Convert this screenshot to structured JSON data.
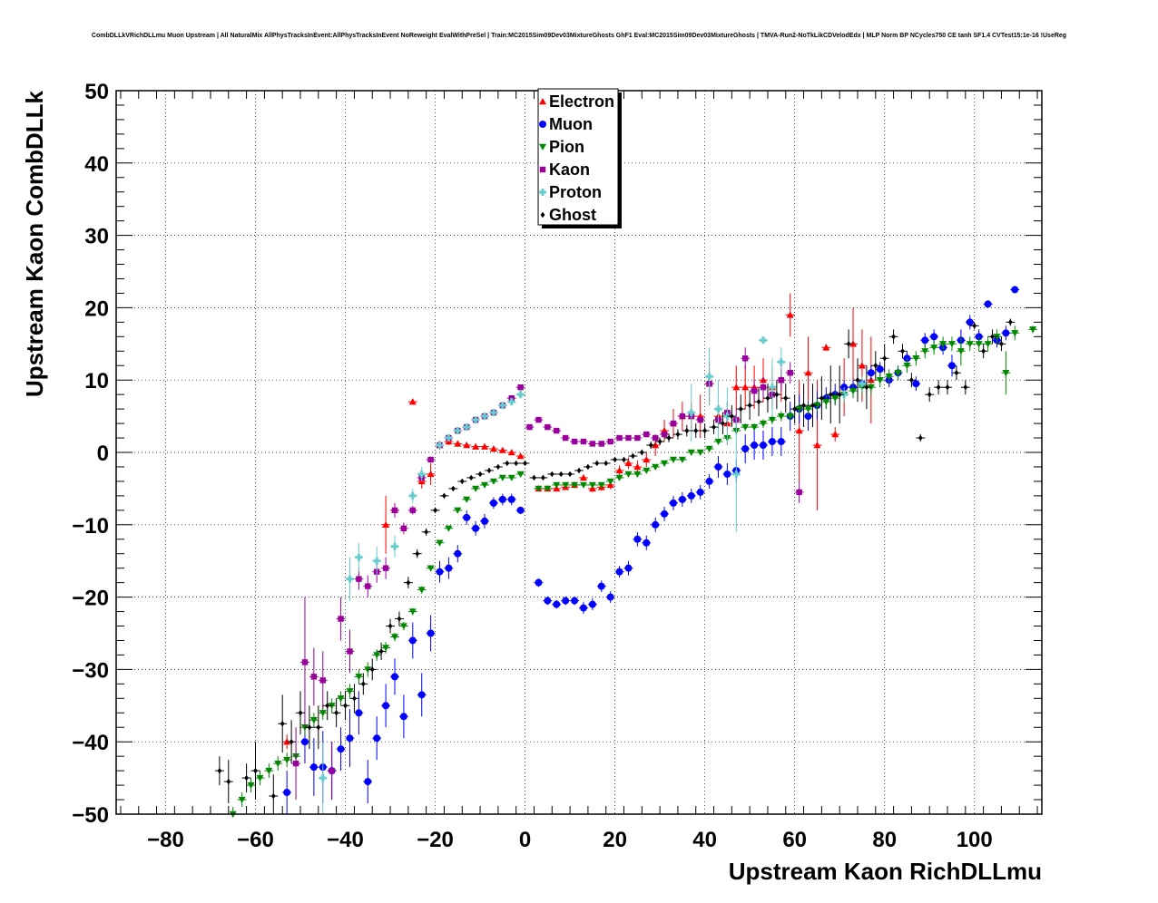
{
  "chart_data": {
    "type": "scatter",
    "title": "CombDLLkVRichDLLmu Muon Upstream | All NaturalMix AllPhysTracksInEvent:AllPhysTracksInEvent NoReweight EvalWithPreSel | Train:MC2015Sim09Dev03MixtureGhosts GhF1 Eval:MC2015Sim09Dev03MixtureGhosts | TMVA-Run2-NoTkLikCDVelodEdx | MLP Norm BP NCycles750 CE tanh SF1.4 CVTest15:1e-16 !UseReg",
    "xlabel": "Upstream Kaon RichDLLmu",
    "ylabel": "Upstream Kaon CombDLLk",
    "xlim": [
      -91,
      115
    ],
    "ylim": [
      -50,
      50
    ],
    "xticks": [
      -80,
      -60,
      -40,
      -20,
      0,
      20,
      40,
      60,
      80,
      100
    ],
    "yticks": [
      -50,
      -40,
      -30,
      -20,
      -10,
      0,
      10,
      20,
      30,
      40,
      50
    ],
    "xtick_labels": [
      "−80",
      "−60",
      "−40",
      "−20",
      "0",
      "20",
      "40",
      "60",
      "80",
      "100"
    ],
    "ytick_labels": [
      "−50",
      "−40",
      "−30",
      "−20",
      "−10",
      "0",
      "10",
      "20",
      "30",
      "40",
      "50"
    ],
    "grid": true,
    "legend_position": "top-center",
    "series": [
      {
        "name": "Electron",
        "color": "#ff0000",
        "marker": "triangle-up",
        "x": [
          -53,
          -31,
          -29,
          -25,
          -23,
          -21,
          -19,
          -17,
          -15,
          -13,
          -11,
          -9,
          -7,
          -5,
          -3,
          -1,
          3,
          5,
          7,
          9,
          11,
          13,
          15,
          17,
          19,
          21,
          23,
          25,
          27,
          29,
          31,
          33,
          35,
          37,
          39,
          41,
          43,
          45,
          47,
          49,
          51,
          53,
          55,
          57,
          59,
          61,
          63,
          65,
          67,
          69,
          71,
          73,
          75,
          77
        ],
        "y": [
          -40,
          -10,
          -8,
          7,
          -4,
          -3,
          1,
          1.5,
          1.2,
          1,
          0.8,
          0.8,
          0.5,
          0.3,
          0,
          -0.5,
          -5,
          -5,
          -5,
          -4.8,
          -4.5,
          -3.5,
          -5,
          -4.8,
          -4.5,
          -2.5,
          -1.5,
          -2,
          -1,
          1,
          3,
          4,
          5,
          5,
          5,
          9.5,
          5,
          4,
          9,
          9,
          9,
          10,
          9,
          10,
          19,
          3,
          11,
          1,
          14.5,
          2.5,
          9,
          15,
          12,
          10
        ],
        "yerr": [
          1,
          4,
          1,
          0.4,
          1,
          1.5,
          0.6,
          0.5,
          0.4,
          0.4,
          0.3,
          0.3,
          0.3,
          0.3,
          0.3,
          0.3,
          0.4,
          0.4,
          0.4,
          0.4,
          0.4,
          0.4,
          0.5,
          0.5,
          0.6,
          0.7,
          0.8,
          0.9,
          1,
          1.5,
          1.5,
          2,
          2,
          2,
          3,
          3,
          2.5,
          3,
          3,
          3,
          3,
          3,
          3,
          3,
          3,
          7,
          5,
          9,
          0.5,
          1,
          4,
          5,
          5,
          6
        ]
      },
      {
        "name": "Muon",
        "color": "#0000ff",
        "marker": "circle",
        "x": [
          -53,
          -49,
          -47,
          -45,
          -43,
          -41,
          -39,
          -37,
          -35,
          -33,
          -31,
          -29,
          -27,
          -25,
          -23,
          -21,
          -19,
          -17,
          -15,
          -13,
          -11,
          -9,
          -7,
          -5,
          -3,
          -1,
          3,
          5,
          7,
          9,
          11,
          13,
          15,
          17,
          19,
          21,
          23,
          25,
          27,
          29,
          31,
          33,
          35,
          37,
          39,
          41,
          43,
          45,
          47,
          49,
          51,
          53,
          55,
          57,
          59,
          61,
          63,
          65,
          67,
          69,
          71,
          73,
          75,
          77,
          79,
          81,
          83,
          85,
          87,
          89,
          91,
          93,
          95,
          97,
          99,
          101,
          103,
          105,
          107,
          109
        ],
        "y": [
          -47,
          -40,
          -43.5,
          -43.5,
          -44,
          -41,
          -39.5,
          -36,
          -45.5,
          -39.5,
          -35,
          -31,
          -36.5,
          -26,
          -33.5,
          -25,
          -16.5,
          -16,
          -14,
          -9,
          -10.5,
          -9.5,
          -7,
          -6.5,
          -6.5,
          -8,
          -18,
          -20.5,
          -21,
          -20.5,
          -20.5,
          -21.5,
          -21,
          -18.5,
          -20,
          -16.5,
          -16,
          -12,
          -12.5,
          -10,
          -8.5,
          -7,
          -6.5,
          -6,
          -5.5,
          -4,
          -2,
          -3,
          -2.5,
          0.5,
          1,
          1,
          1.5,
          1.5,
          5,
          6,
          5,
          6.5,
          7.5,
          8,
          9,
          9,
          9.5,
          11,
          11.5,
          10,
          11,
          13,
          9.5,
          15.5,
          16,
          14.5,
          12,
          15.5,
          18,
          16,
          20.5,
          15.5,
          16.5,
          22.5
        ],
        "yerr": [
          3,
          3,
          4,
          5,
          4,
          3,
          4,
          3,
          3,
          3,
          3,
          2.5,
          3,
          2.5,
          3,
          2.5,
          1.5,
          1.5,
          1.2,
          1,
          1,
          1,
          0.8,
          0.8,
          0.8,
          0.5,
          0.6,
          0.6,
          0.6,
          0.6,
          0.6,
          0.8,
          0.8,
          0.8,
          0.8,
          0.8,
          1,
          1,
          1,
          1,
          1,
          1,
          1,
          1,
          1,
          1,
          1.5,
          1.5,
          1.5,
          2,
          2,
          2,
          2,
          2,
          2,
          2,
          2,
          2,
          1.5,
          1.5,
          1,
          1,
          1,
          1,
          1,
          1,
          1,
          1,
          1,
          1,
          1,
          1,
          1.5,
          1.5,
          1,
          1,
          0.5,
          1,
          1,
          0.5
        ]
      },
      {
        "name": "Pion",
        "color": "#008800",
        "marker": "triangle-down",
        "x": [
          -65,
          -63,
          -61,
          -59,
          -57,
          -55,
          -53,
          -51,
          -49,
          -47,
          -45,
          -43,
          -41,
          -39,
          -37,
          -35,
          -33,
          -31,
          -29,
          -27,
          -25,
          -23,
          -21,
          -19,
          -17,
          -15,
          -13,
          -11,
          -9,
          -7,
          -5,
          -3,
          -1,
          3,
          5,
          7,
          9,
          11,
          13,
          15,
          17,
          19,
          21,
          23,
          25,
          27,
          29,
          31,
          33,
          35,
          37,
          39,
          41,
          43,
          45,
          47,
          49,
          51,
          53,
          55,
          57,
          59,
          61,
          63,
          65,
          67,
          69,
          71,
          73,
          75,
          77,
          79,
          81,
          83,
          85,
          87,
          89,
          91,
          93,
          95,
          97,
          99,
          101,
          103,
          105,
          107,
          109,
          113
        ],
        "y": [
          -50,
          -48,
          -46,
          -45,
          -44,
          -43,
          -42.5,
          -42,
          -38,
          -37,
          -36,
          -35,
          -34,
          -33,
          -31,
          -30,
          -28,
          -27,
          -25.5,
          -24,
          -22,
          -19,
          -16,
          -12.5,
          -10.5,
          -8,
          -6.5,
          -5,
          -4.5,
          -4,
          -3.5,
          -3.5,
          -3,
          -5,
          -5,
          -4.5,
          -4.5,
          -4.5,
          -4.5,
          -4.5,
          -4.5,
          -4,
          -3.5,
          -3,
          -3,
          -2.5,
          -2,
          -1.5,
          -1,
          -1,
          0,
          0,
          0.5,
          1.5,
          2,
          3,
          3.5,
          3.5,
          4,
          4.5,
          5,
          5,
          6,
          6,
          6.5,
          7,
          7.5,
          8,
          8.5,
          9,
          9,
          10,
          10.5,
          11,
          12,
          13,
          14,
          14.5,
          15,
          15,
          14,
          15,
          15,
          15,
          16,
          11,
          16.5,
          17
        ],
        "yerr": [
          1,
          1,
          1,
          1,
          1,
          1,
          1,
          1,
          1,
          1,
          1,
          1,
          1,
          1,
          1,
          1,
          0.8,
          0.8,
          0.6,
          0.6,
          0.5,
          0.5,
          0.4,
          0.4,
          0.3,
          0.3,
          0.3,
          0.3,
          0.2,
          0.2,
          0.2,
          0.2,
          0.2,
          0.3,
          0.3,
          0.3,
          0.3,
          0.3,
          0.3,
          0.3,
          0.3,
          0.3,
          0.3,
          0.3,
          0.3,
          0.3,
          0.3,
          0.3,
          0.3,
          0.3,
          0.3,
          0.4,
          0.4,
          0.4,
          0.5,
          0.5,
          0.5,
          0.5,
          0.6,
          0.6,
          0.7,
          0.7,
          0.8,
          0.8,
          0.9,
          1,
          1,
          1,
          1,
          1,
          1,
          1,
          1,
          1,
          1,
          1,
          1,
          1,
          1,
          1,
          2,
          1,
          1,
          1,
          1,
          3,
          1,
          0.5
        ]
      },
      {
        "name": "Kaon",
        "color": "#990099",
        "marker": "square",
        "x": [
          -51,
          -49,
          -47,
          -45,
          -43,
          -41,
          -39,
          -37,
          -35,
          -33,
          -31,
          -29,
          -27,
          -25,
          -23,
          -21,
          -19,
          -17,
          -15,
          -13,
          -11,
          -9,
          -7,
          -5,
          -3,
          -1,
          1,
          3,
          5,
          7,
          9,
          11,
          13,
          15,
          17,
          19,
          21,
          23,
          25,
          27,
          29,
          31,
          33,
          35,
          37,
          39,
          41,
          43,
          45,
          47,
          49,
          51,
          53,
          55,
          57,
          59,
          61
        ],
        "y": [
          -43,
          -29,
          -31,
          -31.5,
          -44,
          -23,
          -27.5,
          -17.5,
          -18.5,
          -16.5,
          -16,
          -8,
          -10.5,
          -8,
          -3.5,
          -1,
          1,
          2,
          3,
          3.5,
          4.5,
          5,
          5.5,
          6.5,
          7.5,
          9,
          3.5,
          4.5,
          3.5,
          3,
          2,
          1.5,
          1.5,
          1.2,
          1.2,
          1.5,
          2,
          2,
          2,
          2.5,
          2,
          2.5,
          4,
          5,
          5,
          4.5,
          9.5,
          4.5,
          5.5,
          4.5,
          13,
          8.5,
          9,
          8,
          10,
          11,
          -5.5
        ],
        "yerr": [
          5,
          9,
          4,
          4,
          4,
          3,
          3,
          1.5,
          1.5,
          1.5,
          1.5,
          1,
          0.8,
          0.6,
          0.5,
          0.4,
          0.3,
          0.3,
          0.3,
          0.3,
          0.3,
          0.3,
          0.3,
          0.3,
          0.3,
          0.3,
          0.3,
          0.3,
          0.3,
          0.3,
          0.3,
          0.3,
          0.3,
          0.3,
          0.3,
          0.3,
          0.3,
          0.3,
          0.3,
          0.4,
          0.4,
          0.4,
          0.5,
          0.5,
          0.5,
          0.5,
          1.5,
          1.5,
          1.5,
          1.5,
          1.5,
          1.5,
          1.5,
          1.5,
          1.5,
          1.5,
          1.5
        ]
      },
      {
        "name": "Proton",
        "color": "#66cccc",
        "marker": "cross",
        "x": [
          -45,
          -39,
          -37,
          -33,
          -29,
          -25,
          -23,
          -19,
          -17,
          -15,
          -13,
          -11,
          -9,
          -7,
          -5,
          -3,
          -1,
          37,
          41,
          43,
          45,
          47,
          53,
          55,
          57,
          71,
          75
        ],
        "y": [
          -45,
          -17.5,
          -14.5,
          -15,
          -13,
          -6,
          -3,
          1,
          2,
          3,
          3.5,
          4.5,
          5,
          5.5,
          6.5,
          7,
          8,
          5.5,
          10.5,
          6,
          5,
          -3,
          15.5,
          9,
          12.5,
          8,
          9.5
        ],
        "yerr": [
          5,
          3,
          2,
          2,
          1.5,
          1,
          1,
          0.5,
          0.5,
          0.4,
          0.4,
          0.4,
          0.4,
          0.4,
          0.4,
          0.4,
          0.4,
          4,
          4,
          4,
          4,
          8,
          0.5,
          4,
          2,
          1,
          1
        ]
      },
      {
        "name": "Ghost",
        "color": "#000000",
        "marker": "diamond",
        "x": [
          -68,
          -66,
          -62,
          -60,
          -56,
          -54,
          -52,
          -50,
          -48,
          -46,
          -44,
          -42,
          -40,
          -38,
          -36,
          -34,
          -32,
          -30,
          -28,
          -26,
          -24,
          -22,
          -20,
          -18,
          -16,
          -14,
          -12,
          -10,
          -8,
          -6,
          -4,
          -2,
          0,
          2,
          4,
          6,
          8,
          10,
          12,
          14,
          16,
          18,
          20,
          22,
          24,
          26,
          28,
          30,
          32,
          34,
          36,
          38,
          40,
          42,
          44,
          46,
          48,
          50,
          52,
          54,
          56,
          58,
          60,
          62,
          64,
          66,
          68,
          70,
          72,
          74,
          76,
          78,
          80,
          82,
          84,
          86,
          88,
          90,
          92,
          94,
          96,
          98,
          100,
          102,
          104,
          106,
          108
        ],
        "y": [
          -44,
          -45.5,
          -45,
          -44,
          -47.5,
          -37.5,
          -40,
          -36,
          -38,
          -38,
          -35,
          -36,
          -35,
          -34,
          -32,
          -30,
          -27.5,
          -24,
          -23,
          -18,
          -14,
          -11,
          -8,
          -6,
          -5,
          -4,
          -3.5,
          -3,
          -2.5,
          -2,
          -1.5,
          -1.5,
          -1.5,
          -3.5,
          -3.5,
          -3,
          -3,
          -3,
          -2.5,
          -2,
          -1.5,
          -1.5,
          -1,
          -1,
          -0.5,
          0,
          1,
          1.5,
          2,
          2.5,
          3,
          3,
          3,
          3.5,
          4,
          5,
          6,
          6.5,
          7,
          7.5,
          8,
          7.5,
          6,
          6.5,
          6.5,
          7.5,
          8,
          8,
          15,
          10,
          9,
          12,
          13,
          16,
          14,
          10,
          2,
          8,
          9,
          9,
          11,
          9,
          17.5,
          14,
          16,
          15,
          18
        ],
        "yerr": [
          2,
          3,
          2,
          4,
          3,
          4,
          3,
          3,
          3,
          3,
          2,
          2,
          2,
          2,
          1.5,
          1.5,
          1.2,
          1,
          1,
          0.8,
          0.6,
          0.5,
          0.4,
          0.3,
          0.3,
          0.3,
          0.2,
          0.2,
          0.2,
          0.2,
          0.2,
          0.2,
          0.2,
          0.2,
          0.2,
          0.2,
          0.2,
          0.2,
          0.2,
          0.2,
          0.2,
          0.3,
          0.3,
          0.3,
          0.3,
          0.4,
          0.5,
          0.5,
          0.6,
          0.7,
          0.8,
          1,
          1,
          1,
          1.5,
          1.5,
          2,
          2,
          2,
          2,
          2,
          2,
          2,
          3,
          3,
          3,
          4,
          4,
          2,
          3,
          3,
          2,
          2,
          1,
          1,
          1,
          0.5,
          1,
          1,
          1,
          1,
          1,
          0.5,
          1,
          1,
          1,
          0.5
        ]
      }
    ]
  }
}
